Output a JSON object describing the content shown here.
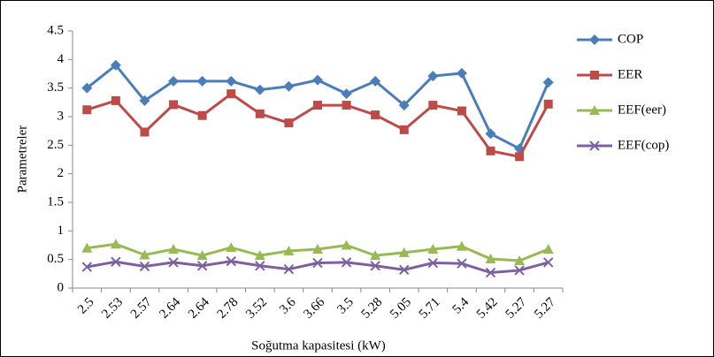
{
  "chart_data": {
    "type": "line",
    "x_label": "Soğutma kapasitesi (kW)",
    "y_label": "Parametreler",
    "categories": [
      "2.5",
      "2.53",
      "2.57",
      "2.64",
      "2.64",
      "2.78",
      "3.52",
      "3.6",
      "3.66",
      "3.5",
      "5.28",
      "5.05",
      "5.71",
      "5.4",
      "5.42",
      "5.27",
      "5.27"
    ],
    "series": [
      {
        "name": "COP",
        "color": "#4a7ebb",
        "marker": "diamond",
        "values": [
          3.5,
          3.9,
          3.28,
          3.62,
          3.62,
          3.62,
          3.47,
          3.53,
          3.64,
          3.4,
          3.62,
          3.2,
          3.71,
          3.76,
          2.7,
          2.44,
          3.6
        ]
      },
      {
        "name": "EER",
        "color": "#be4b48",
        "marker": "square",
        "values": [
          3.12,
          3.28,
          2.73,
          3.21,
          3.02,
          3.4,
          3.05,
          2.89,
          3.2,
          3.2,
          3.03,
          2.77,
          3.2,
          3.1,
          2.4,
          2.3,
          3.22
        ]
      },
      {
        "name": "EEF(eer)",
        "color": "#98b954",
        "marker": "triangle",
        "values": [
          0.7,
          0.77,
          0.58,
          0.68,
          0.57,
          0.71,
          0.57,
          0.65,
          0.68,
          0.75,
          0.57,
          0.62,
          0.68,
          0.73,
          0.51,
          0.48,
          0.68
        ]
      },
      {
        "name": "EEF(cop)",
        "color": "#7d60a0",
        "marker": "x",
        "values": [
          0.37,
          0.46,
          0.38,
          0.45,
          0.39,
          0.47,
          0.39,
          0.33,
          0.44,
          0.45,
          0.39,
          0.32,
          0.44,
          0.43,
          0.27,
          0.31,
          0.45
        ]
      }
    ],
    "ylim": [
      0,
      4.5
    ],
    "yticks": [
      0,
      0.5,
      1,
      1.5,
      2,
      2.5,
      3,
      3.5,
      4,
      4.5
    ],
    "grid": false,
    "legend": "right"
  }
}
